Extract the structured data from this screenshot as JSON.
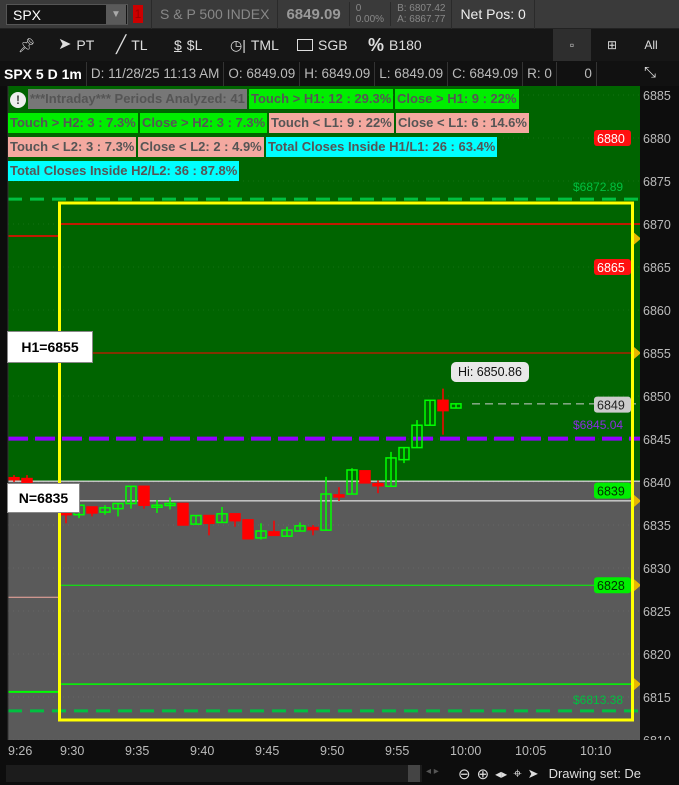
{
  "header": {
    "symbol": "SPX",
    "alert_badge": "1",
    "description": "S & P 500 INDEX",
    "last": "6849.09",
    "change": "0",
    "change_pct": "0.00%",
    "bid": "B: 6807.42",
    "ask": "A: 6867.77",
    "net_pos": "Net Pos: 0"
  },
  "toolbar": {
    "tools": [
      {
        "label": "",
        "icon": "pin-icon"
      },
      {
        "label": "PT",
        "icon": "pointer-icon"
      },
      {
        "label": "TL",
        "icon": "trendline-icon"
      },
      {
        "label": "$L",
        "icon": "price-level-icon"
      },
      {
        "label": "TML",
        "icon": "timer-icon"
      },
      {
        "label": "SGB",
        "icon": "rectangle-icon"
      },
      {
        "label": "B180",
        "icon": "percent-icon"
      }
    ],
    "layout_buttons": [
      {
        "label": "",
        "icon": "single-layout-icon"
      },
      {
        "label": "",
        "icon": "grid-layout-icon"
      },
      {
        "label": "All"
      }
    ]
  },
  "info": {
    "title": "SPX 5 D 1m",
    "date": "D: 11/28/25 11:13 AM",
    "open": "O: 6849.09",
    "high": "H: 6849.09",
    "low": "L: 6849.09",
    "close": "C: 6849.09",
    "range": "R: 0",
    "volume": "0"
  },
  "stats": [
    {
      "text": "***Intraday*** Periods Analyzed: 41",
      "style": "gr"
    },
    {
      "text": "Touch > H1: 12 : 29.3%",
      "style": "g"
    },
    {
      "text": "Close > H1: 9 : 22%",
      "style": "g"
    },
    {
      "text": "Touch > H2: 3 : 7.3%",
      "style": "g"
    },
    {
      "text": "Close > H2: 3 : 7.3%",
      "style": "g"
    },
    {
      "text": "Touch < L1: 9 : 22%",
      "style": "p"
    },
    {
      "text": "Close < L1: 6 : 14.6%",
      "style": "p"
    },
    {
      "text": "Touch < L2: 3 : 7.3%",
      "style": "p"
    },
    {
      "text": "Close < L2: 2 : 4.9%",
      "style": "p"
    },
    {
      "text": "Total Closes Inside H1/L1: 26 : 63.4%",
      "style": "c"
    },
    {
      "text": "Total Closes Inside H2/L2: 36 : 87.8%",
      "style": "c"
    }
  ],
  "chart_labels": {
    "h1": "H1=6855",
    "n": "N=6835",
    "hi_bubble": "Hi: 6850.86",
    "upper_dashed": "$6872.89",
    "purple_dashed": "$6845.04",
    "lower_dashed": "$6813.38"
  },
  "colors": {
    "bull": "#00ff00",
    "bear": "#ff0000",
    "upper_zone": "#006400",
    "lower_zone": "#5a5a5a",
    "box": "#ffff00",
    "purple": "#9400ff"
  },
  "chart_data": {
    "type": "candlestick",
    "ylim": [
      6810,
      6885
    ],
    "yticks": [
      6885,
      6880,
      6875,
      6870,
      6865,
      6860,
      6855,
      6850,
      6845,
      6840,
      6835,
      6830,
      6825,
      6820,
      6815,
      6810
    ],
    "xticks": [
      "9:26",
      "9:30",
      "9:35",
      "9:40",
      "9:45",
      "9:50",
      "9:55",
      "10:00",
      "10:05",
      "10:10"
    ],
    "price_markers": [
      {
        "value": "6880",
        "color": "#ff1010"
      },
      {
        "value": "6865",
        "color": "#ff1010"
      },
      {
        "value": "6849",
        "color": "#cccccc"
      },
      {
        "value": "6839",
        "color": "#00ee00"
      },
      {
        "value": "6828",
        "color": "#00ee00"
      }
    ],
    "levels": {
      "red_top": 6870,
      "h1": 6855,
      "zone_split": 6840.1,
      "n_line": 6837.8,
      "green_1": 6828,
      "green_2": 6816.5,
      "upper_dashed": 6872.89,
      "purple": 6845.04,
      "lower_dashed": 6813.38,
      "last": 6849.09
    },
    "premarket": [
      {
        "t": "9:26",
        "o": 6840.5,
        "h": 6840.8,
        "l": 6840.0,
        "c": 6840.3
      },
      {
        "t": "9:27",
        "o": 6840.4,
        "h": 6840.8,
        "l": 6839.8,
        "c": 6839.8
      }
    ],
    "candles": [
      {
        "t": "9:30",
        "o": 6836.9,
        "h": 6837.1,
        "l": 6835.2,
        "c": 6836.2
      },
      {
        "t": "9:31",
        "o": 6836.2,
        "h": 6837.3,
        "l": 6835.8,
        "c": 6837.3
      },
      {
        "t": "9:32",
        "o": 6837.1,
        "h": 6837.1,
        "l": 6836.0,
        "c": 6836.4
      },
      {
        "t": "9:33",
        "o": 6836.5,
        "h": 6837.3,
        "l": 6836.2,
        "c": 6837.0
      },
      {
        "t": "9:34",
        "o": 6836.9,
        "h": 6837.5,
        "l": 6836.0,
        "c": 6837.5
      },
      {
        "t": "9:35",
        "o": 6837.5,
        "h": 6839.5,
        "l": 6836.9,
        "c": 6839.5
      },
      {
        "t": "9:36",
        "o": 6839.5,
        "h": 6839.5,
        "l": 6836.9,
        "c": 6837.3
      },
      {
        "t": "9:37",
        "o": 6837.2,
        "h": 6837.9,
        "l": 6836.4,
        "c": 6837.3
      },
      {
        "t": "9:38",
        "o": 6837.4,
        "h": 6838.2,
        "l": 6836.8,
        "c": 6837.5
      },
      {
        "t": "9:39",
        "o": 6837.5,
        "h": 6837.5,
        "l": 6835.0,
        "c": 6835.0
      },
      {
        "t": "9:40",
        "o": 6835.1,
        "h": 6836.1,
        "l": 6835.1,
        "c": 6836.1
      },
      {
        "t": "9:41",
        "o": 6836.1,
        "h": 6836.1,
        "l": 6833.8,
        "c": 6835.2
      },
      {
        "t": "9:42",
        "o": 6835.3,
        "h": 6837.1,
        "l": 6835.3,
        "c": 6836.3
      },
      {
        "t": "9:43",
        "o": 6836.3,
        "h": 6836.3,
        "l": 6834.8,
        "c": 6835.5
      },
      {
        "t": "9:44",
        "o": 6835.6,
        "h": 6835.6,
        "l": 6833.4,
        "c": 6833.4
      },
      {
        "t": "9:45",
        "o": 6833.5,
        "h": 6835.2,
        "l": 6833.3,
        "c": 6834.3
      },
      {
        "t": "9:46",
        "o": 6834.2,
        "h": 6835.5,
        "l": 6833.8,
        "c": 6833.8
      },
      {
        "t": "9:47",
        "o": 6833.7,
        "h": 6834.8,
        "l": 6833.7,
        "c": 6834.4
      },
      {
        "t": "9:48",
        "o": 6834.3,
        "h": 6835.3,
        "l": 6834.3,
        "c": 6834.9
      },
      {
        "t": "9:49",
        "o": 6834.7,
        "h": 6835.0,
        "l": 6833.8,
        "c": 6834.6
      },
      {
        "t": "9:50",
        "o": 6834.4,
        "h": 6840.6,
        "l": 6834.4,
        "c": 6838.6
      },
      {
        "t": "9:51",
        "o": 6838.5,
        "h": 6839.4,
        "l": 6837.8,
        "c": 6838.4
      },
      {
        "t": "9:52",
        "o": 6838.6,
        "h": 6841.6,
        "l": 6838.6,
        "c": 6841.4
      },
      {
        "t": "9:53",
        "o": 6841.3,
        "h": 6841.3,
        "l": 6839.9,
        "c": 6839.9
      },
      {
        "t": "9:54",
        "o": 6839.8,
        "h": 6840.2,
        "l": 6838.7,
        "c": 6839.7
      },
      {
        "t": "9:55",
        "o": 6839.5,
        "h": 6843.5,
        "l": 6839.5,
        "c": 6842.8
      },
      {
        "t": "9:56",
        "o": 6842.6,
        "h": 6844.0,
        "l": 6842.2,
        "c": 6844.0
      },
      {
        "t": "9:57",
        "o": 6844.0,
        "h": 6847.2,
        "l": 6844.0,
        "c": 6846.6
      },
      {
        "t": "9:58",
        "o": 6846.6,
        "h": 6849.5,
        "l": 6846.6,
        "c": 6849.5
      },
      {
        "t": "9:59",
        "o": 6849.5,
        "h": 6850.86,
        "l": 6845.5,
        "c": 6848.3
      },
      {
        "t": "10:00",
        "o": 6848.6,
        "h": 6849.1,
        "l": 6848.6,
        "c": 6849.09
      }
    ]
  },
  "footer": {
    "drawing_set": "Drawing set: De"
  }
}
